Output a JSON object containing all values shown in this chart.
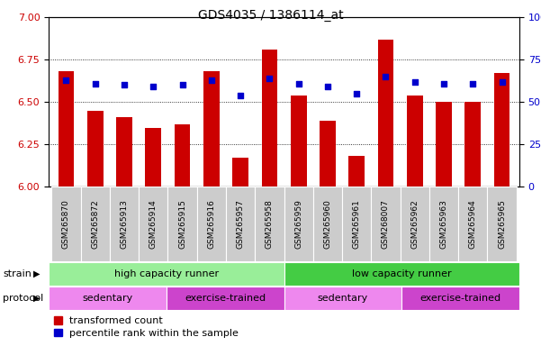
{
  "title": "GDS4035 / 1386114_at",
  "samples": [
    "GSM265870",
    "GSM265872",
    "GSM265913",
    "GSM265914",
    "GSM265915",
    "GSM265916",
    "GSM265957",
    "GSM265958",
    "GSM265959",
    "GSM265960",
    "GSM265961",
    "GSM268007",
    "GSM265962",
    "GSM265963",
    "GSM265964",
    "GSM265965"
  ],
  "red_values": [
    6.68,
    6.45,
    6.41,
    6.35,
    6.37,
    6.68,
    6.17,
    6.81,
    6.54,
    6.39,
    6.18,
    6.87,
    6.54,
    6.5,
    6.5,
    6.67
  ],
  "blue_pct": [
    63,
    61,
    60,
    59,
    60,
    63,
    54,
    64,
    61,
    59,
    55,
    65,
    62,
    61,
    61,
    62
  ],
  "ylim_left": [
    6.0,
    7.0
  ],
  "ylim_right": [
    0,
    100
  ],
  "yticks_left": [
    6.0,
    6.25,
    6.5,
    6.75,
    7.0
  ],
  "yticks_right": [
    0,
    25,
    50,
    75,
    100
  ],
  "red_color": "#cc0000",
  "blue_color": "#0000cc",
  "bar_bottom": 6.0,
  "strain_groups": [
    {
      "label": "high capacity runner",
      "start": 0,
      "end": 8,
      "color": "#99ee99"
    },
    {
      "label": "low capacity runner",
      "start": 8,
      "end": 16,
      "color": "#44cc44"
    }
  ],
  "protocol_groups": [
    {
      "label": "sedentary",
      "start": 0,
      "end": 4,
      "color": "#ee88ee"
    },
    {
      "label": "exercise-trained",
      "start": 4,
      "end": 8,
      "color": "#cc44cc"
    },
    {
      "label": "sedentary",
      "start": 8,
      "end": 12,
      "color": "#ee88ee"
    },
    {
      "label": "exercise-trained",
      "start": 12,
      "end": 16,
      "color": "#cc44cc"
    }
  ],
  "legend_red_label": "transformed count",
  "legend_blue_label": "percentile rank within the sample",
  "strain_label": "strain",
  "protocol_label": "protocol",
  "tick_bg_color": "#cccccc",
  "grid_lines": [
    6.25,
    6.5,
    6.75
  ]
}
